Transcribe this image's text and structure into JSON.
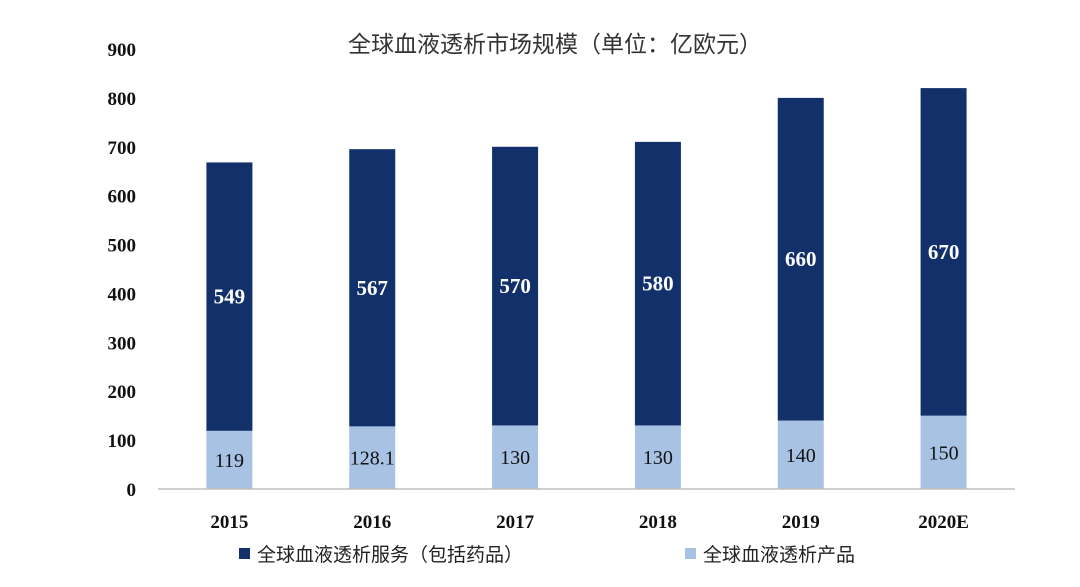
{
  "chart_data": {
    "type": "bar",
    "stacked": true,
    "title": "全球血液透析市场规模（单位：亿欧元）",
    "categories": [
      "2015",
      "2016",
      "2017",
      "2018",
      "2019",
      "2020E"
    ],
    "series": [
      {
        "name": "全球血液透析产品",
        "values": [
          119,
          128.1,
          130,
          130,
          140,
          150
        ],
        "labels": [
          "119",
          "128.1",
          "130",
          "130",
          "140",
          "150"
        ],
        "color": "#a8c2e4"
      },
      {
        "name": "全球血液透析服务（包括药品）",
        "values": [
          549,
          567,
          570,
          580,
          660,
          670
        ],
        "labels": [
          "549",
          "567",
          "570",
          "580",
          "660",
          "670"
        ],
        "color": "#12306a"
      }
    ],
    "ylim": [
      0,
      900
    ],
    "yticks": [
      "0",
      "100",
      "200",
      "300",
      "400",
      "500",
      "600",
      "700",
      "800",
      "900"
    ],
    "grid": false,
    "legend": "bottom"
  }
}
